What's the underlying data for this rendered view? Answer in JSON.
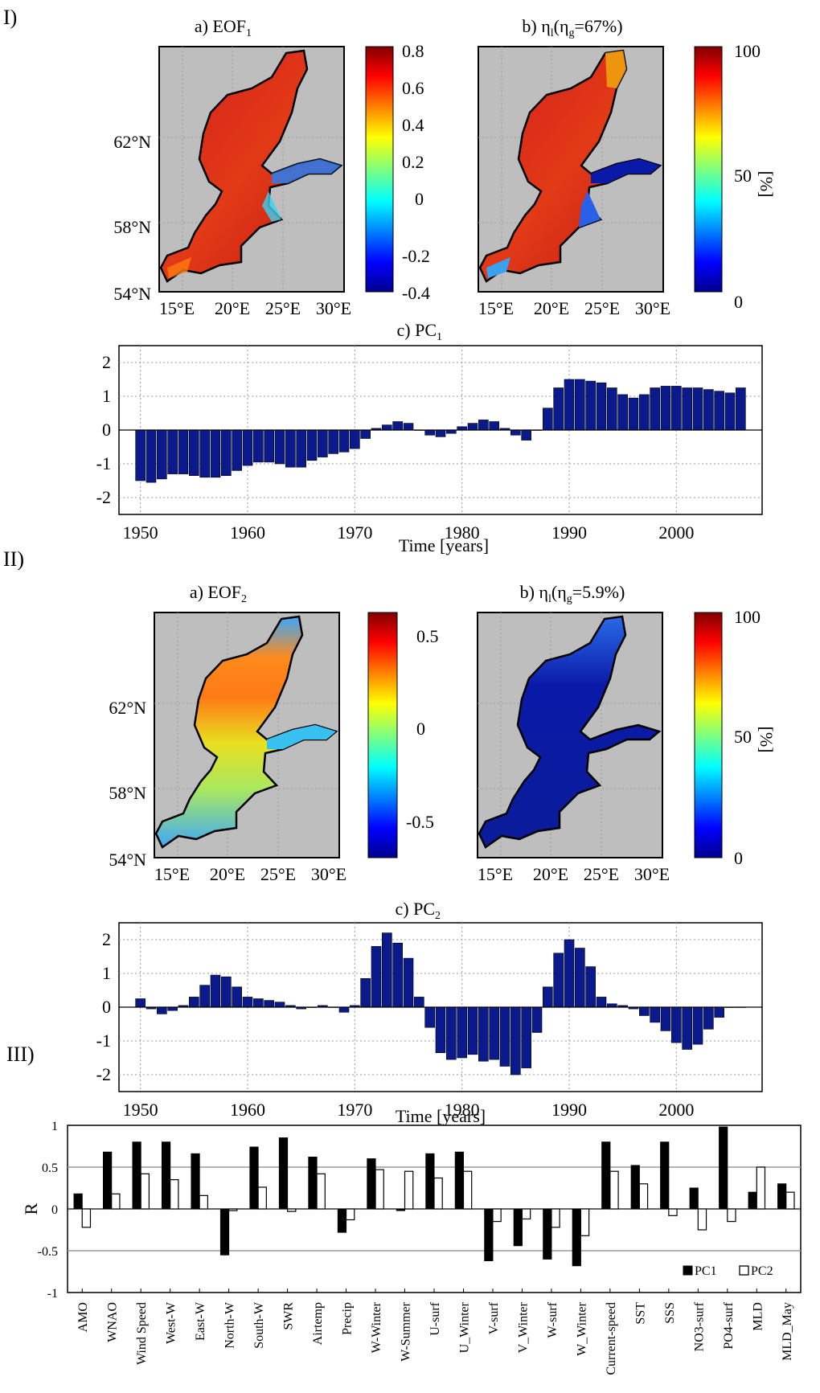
{
  "sections": {
    "s1": "I)",
    "s2": "II)",
    "s3": "III)"
  },
  "colors": {
    "bar_pc": "#0a1a8c",
    "land": "#bebebe",
    "r_pc1": "#000000",
    "r_pc2": "#ffffff"
  },
  "panel1": {
    "map_a_title_main": "a) EOF",
    "map_a_title_sub": "1",
    "map_b_title_main": "b) η",
    "map_b_title_sub1": "l",
    "map_b_title_mid": "(η",
    "map_b_title_sub2": "g",
    "map_b_title_end": "=67%)",
    "lat_ticks": [
      "62°N",
      "58°N",
      "54°N"
    ],
    "lon_ticks": [
      "15°E",
      "20°E",
      "25°E",
      "30°E"
    ],
    "cbar_a_ticks": [
      "0.8",
      "0.6",
      "0.4",
      "0.2",
      "0",
      "-0.2",
      "-0.4"
    ],
    "cbar_b_ticks": [
      "100",
      "50",
      "0"
    ],
    "cbar_b_unit": "[%]",
    "pc_title_main": "c) PC",
    "pc_title_sub": "1",
    "xlabel": "Time [years]"
  },
  "panel2": {
    "map_a_title_main": "a) EOF",
    "map_a_title_sub": "2",
    "map_b_title_main": "b) η",
    "map_b_title_sub1": "l",
    "map_b_title_mid": "(η",
    "map_b_title_sub2": "g",
    "map_b_title_end": "=5.9%)",
    "lat_ticks": [
      "62°N",
      "58°N",
      "54°N"
    ],
    "lon_ticks": [
      "15°E",
      "20°E",
      "25°E",
      "30°E"
    ],
    "cbar_a_ticks": [
      "0.5",
      "0",
      "-0.5"
    ],
    "cbar_b_ticks": [
      "100",
      "50",
      "0"
    ],
    "cbar_b_unit": "[%]",
    "pc_title_main": "c) PC",
    "pc_title_sub": "2",
    "xlabel": "Time [years]"
  },
  "chart_data": [
    {
      "type": "bar",
      "title": "c) PC1",
      "xlabel": "Time [years]",
      "ylabel": "",
      "x": [
        1950,
        1951,
        1952,
        1953,
        1954,
        1955,
        1956,
        1957,
        1958,
        1959,
        1960,
        1961,
        1962,
        1963,
        1964,
        1965,
        1966,
        1967,
        1968,
        1969,
        1970,
        1971,
        1972,
        1973,
        1974,
        1975,
        1976,
        1977,
        1978,
        1979,
        1980,
        1981,
        1982,
        1983,
        1984,
        1985,
        1986,
        1987,
        1988,
        1989,
        1990,
        1991,
        1992,
        1993,
        1994,
        1995,
        1996,
        1997,
        1998,
        1999,
        2000,
        2001,
        2002,
        2003,
        2004,
        2005,
        2006
      ],
      "values": [
        -1.5,
        -1.55,
        -1.45,
        -1.3,
        -1.3,
        -1.35,
        -1.4,
        -1.4,
        -1.35,
        -1.2,
        -1.05,
        -0.95,
        -0.95,
        -1.0,
        -1.1,
        -1.1,
        -0.9,
        -0.8,
        -0.7,
        -0.65,
        -0.55,
        -0.25,
        0.05,
        0.15,
        0.25,
        0.2,
        0.0,
        -0.15,
        -0.2,
        -0.1,
        0.1,
        0.2,
        0.3,
        0.25,
        0.05,
        -0.15,
        -0.3,
        0.0,
        0.65,
        1.25,
        1.5,
        1.5,
        1.45,
        1.4,
        1.25,
        1.05,
        0.95,
        1.05,
        1.25,
        1.3,
        1.3,
        1.25,
        1.25,
        1.2,
        1.15,
        1.1,
        1.25
      ],
      "xlim": [
        1948,
        2008
      ],
      "ylim": [
        -2.5,
        2.5
      ],
      "xticks": [
        "1950",
        "1960",
        "1970",
        "1980",
        "1990",
        "2000"
      ],
      "yticks": [
        "2",
        "1",
        "0",
        "-1",
        "-2"
      ]
    },
    {
      "type": "bar",
      "title": "c) PC2",
      "xlabel": "Time [years]",
      "ylabel": "",
      "x": [
        1950,
        1951,
        1952,
        1953,
        1954,
        1955,
        1956,
        1957,
        1958,
        1959,
        1960,
        1961,
        1962,
        1963,
        1964,
        1965,
        1966,
        1967,
        1968,
        1969,
        1970,
        1971,
        1972,
        1973,
        1974,
        1975,
        1976,
        1977,
        1978,
        1979,
        1980,
        1981,
        1982,
        1983,
        1984,
        1985,
        1986,
        1987,
        1988,
        1989,
        1990,
        1991,
        1992,
        1993,
        1994,
        1995,
        1996,
        1997,
        1998,
        1999,
        2000,
        2001,
        2002,
        2003,
        2004,
        2005,
        2006
      ],
      "values": [
        0.25,
        -0.05,
        -0.2,
        -0.1,
        0.05,
        0.3,
        0.65,
        0.95,
        0.9,
        0.6,
        0.3,
        0.25,
        0.2,
        0.15,
        0.05,
        -0.05,
        0.0,
        0.05,
        0.0,
        -0.15,
        0.05,
        0.85,
        1.8,
        2.2,
        1.9,
        1.45,
        0.3,
        -0.6,
        -1.35,
        -1.55,
        -1.5,
        -1.4,
        -1.6,
        -1.55,
        -1.75,
        -2.0,
        -1.8,
        -0.75,
        0.6,
        1.6,
        2.0,
        1.75,
        1.2,
        0.3,
        0.1,
        0.05,
        -0.05,
        -0.25,
        -0.45,
        -0.7,
        -1.05,
        -1.25,
        -1.1,
        -0.65,
        -0.3,
        0.0,
        0.0
      ],
      "xlim": [
        1948,
        2008
      ],
      "ylim": [
        -2.5,
        2.5
      ],
      "xticks": [
        "1950",
        "1960",
        "1970",
        "1980",
        "1990",
        "2000"
      ],
      "yticks": [
        "2",
        "1",
        "0",
        "-1",
        "-2"
      ]
    },
    {
      "type": "bar",
      "title": "",
      "xlabel": "",
      "ylabel": "R",
      "categories": [
        "AMO",
        "WNAO",
        "Wind Speed",
        "West-W",
        "East-W",
        "North-W",
        "South-W",
        "SWR",
        "Airtemp",
        "Precip",
        "W-Winter",
        "W-Summer",
        "U-surf",
        "U_Winter",
        "V-surf",
        "V_Winter",
        "W-surf",
        "W_Winter",
        "Current-speed",
        "SST",
        "SSS",
        "NO3-surf",
        "PO4-surf",
        "MLD",
        "MLD_May"
      ],
      "series": [
        {
          "name": "PC1",
          "values": [
            0.18,
            0.68,
            0.8,
            0.8,
            0.66,
            -0.55,
            0.74,
            0.85,
            0.62,
            -0.28,
            0.6,
            -0.02,
            0.66,
            0.68,
            -0.62,
            -0.44,
            -0.6,
            -0.68,
            0.8,
            0.52,
            0.8,
            0.25,
            0.98,
            0.2,
            0.3
          ]
        },
        {
          "name": "PC2",
          "values": [
            -0.22,
            0.18,
            0.42,
            0.35,
            0.16,
            -0.02,
            0.26,
            -0.03,
            0.42,
            -0.13,
            0.47,
            0.45,
            0.37,
            0.45,
            -0.15,
            -0.12,
            -0.22,
            -0.32,
            0.45,
            0.3,
            -0.08,
            -0.25,
            -0.15,
            0.5,
            0.2
          ]
        }
      ],
      "ylim": [
        -1,
        1
      ],
      "yticks": [
        "1",
        "0.5",
        "0",
        "-0.5",
        "-1"
      ],
      "legend": "bottom-right"
    }
  ]
}
